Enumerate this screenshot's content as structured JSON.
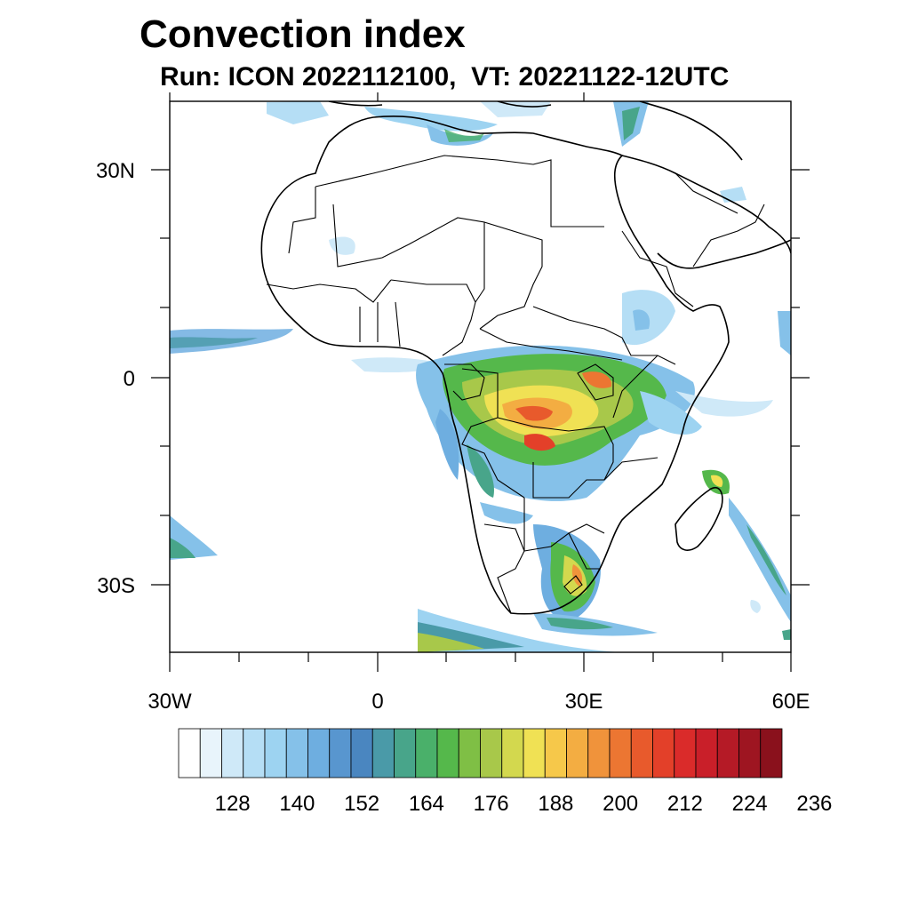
{
  "title": "Convection index",
  "subtitle": "Run: ICON 2022112100,  VT: 20221122-12UTC",
  "map": {
    "projection": "cylindrical",
    "lon_range": [
      -30,
      60
    ],
    "lat_range": [
      -40,
      40
    ],
    "x_tick_labels": [
      "30W",
      "0",
      "30E",
      "60E"
    ],
    "y_tick_labels": [
      "30N",
      "0",
      "30S"
    ]
  },
  "colorbar": {
    "tick_labels": [
      "128",
      "140",
      "152",
      "164",
      "176",
      "188",
      "200",
      "212",
      "224",
      "236"
    ],
    "colors": [
      "#ffffff",
      "#e8f4fb",
      "#cfe9f8",
      "#b5def5",
      "#9dd3f1",
      "#85c1e9",
      "#6eaee0",
      "#5896cf",
      "#4a86c0",
      "#4a9aa8",
      "#48a58a",
      "#4ab06a",
      "#55b84b",
      "#7fbf45",
      "#a8c84a",
      "#d3d84e",
      "#f0e154",
      "#f6c84a",
      "#f3ad42",
      "#f0933b",
      "#ec7632",
      "#e85a2c",
      "#e34029",
      "#da2b2a",
      "#c91f29",
      "#b51a26",
      "#9e1521",
      "#8a111c"
    ]
  }
}
